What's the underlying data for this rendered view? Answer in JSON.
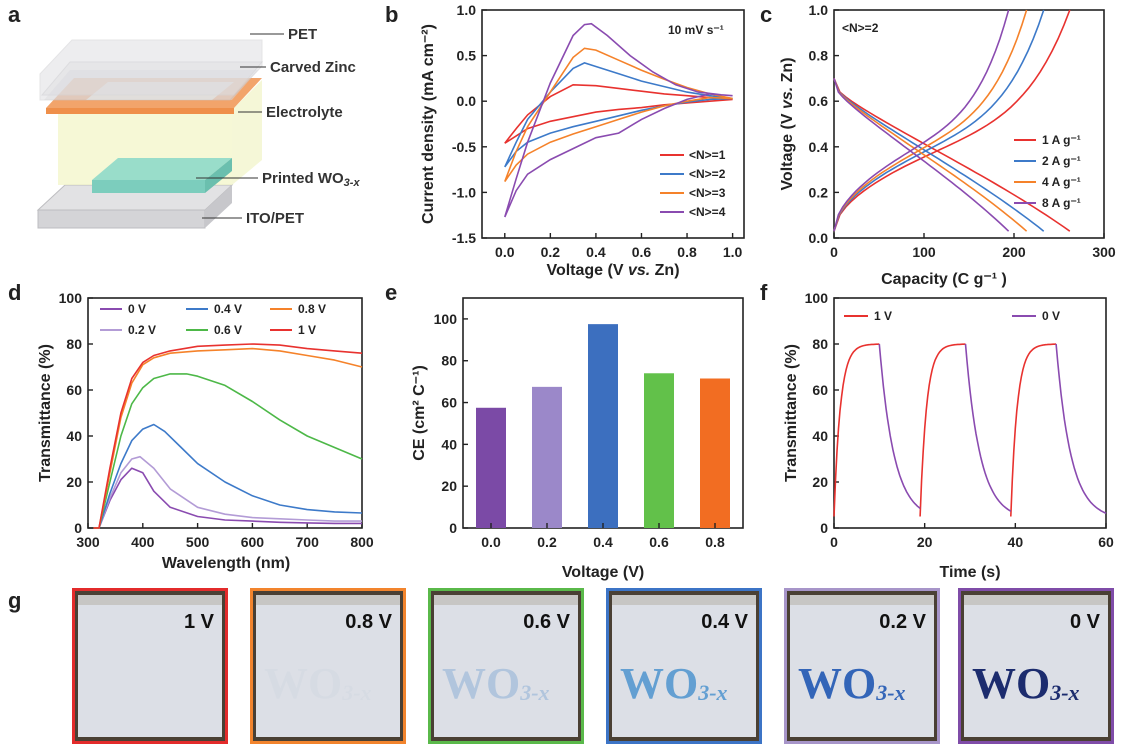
{
  "panel_labels": [
    "a",
    "b",
    "c",
    "d",
    "e",
    "f",
    "g"
  ],
  "schematic": {
    "labels": [
      "PET",
      "Carved Zinc",
      "Electrolyte",
      "Printed WO",
      "3-x",
      "ITO/PET"
    ]
  },
  "chart_data": [
    {
      "panel": "b",
      "type": "line",
      "xlabel_parts": [
        "Voltage (V ",
        "vs.",
        " Zn)"
      ],
      "ylabel": "Current density (mA cm⁻²)",
      "note": "10 mV s⁻¹",
      "xlim": [
        -0.1,
        1.05
      ],
      "ylim": [
        -1.5,
        1.0
      ],
      "xticks": [
        "0.0",
        "0.2",
        "0.4",
        "0.6",
        "0.8",
        "1.0"
      ],
      "yticks": [
        "-1.5",
        "-1.0",
        "-0.5",
        "0.0",
        "0.5",
        "1.0"
      ],
      "legend": [
        "<N>=1",
        "<N>=2",
        "<N>=3",
        "<N>=4"
      ],
      "colors": [
        "#e8322f",
        "#3d7ac9",
        "#f5822a",
        "#8a4bb0"
      ],
      "series": [
        {
          "name": "<N>=1",
          "x": [
            0.0,
            0.05,
            0.1,
            0.2,
            0.3,
            0.4,
            0.5,
            0.6,
            0.7,
            0.8,
            0.9,
            1.0,
            1.0,
            0.9,
            0.8,
            0.7,
            0.6,
            0.5,
            0.4,
            0.3,
            0.2,
            0.1,
            0.05,
            0.0
          ],
          "y": [
            -0.46,
            -0.3,
            -0.15,
            0.05,
            0.18,
            0.17,
            0.14,
            0.11,
            0.08,
            0.06,
            0.04,
            0.02,
            0.02,
            0.0,
            -0.02,
            -0.04,
            -0.07,
            -0.09,
            -0.12,
            -0.17,
            -0.22,
            -0.3,
            -0.38,
            -0.46
          ]
        },
        {
          "name": "<N>=2",
          "x": [
            0.0,
            0.05,
            0.1,
            0.2,
            0.3,
            0.35,
            0.4,
            0.5,
            0.6,
            0.7,
            0.8,
            0.9,
            1.0,
            1.0,
            0.9,
            0.8,
            0.7,
            0.6,
            0.5,
            0.4,
            0.3,
            0.2,
            0.1,
            0.05,
            0.0
          ],
          "y": [
            -0.72,
            -0.45,
            -0.2,
            0.1,
            0.36,
            0.42,
            0.38,
            0.3,
            0.22,
            0.16,
            0.1,
            0.06,
            0.03,
            0.03,
            0.02,
            -0.01,
            -0.05,
            -0.1,
            -0.16,
            -0.22,
            -0.28,
            -0.35,
            -0.45,
            -0.55,
            -0.72
          ]
        },
        {
          "name": "<N>=3",
          "x": [
            0.0,
            0.05,
            0.1,
            0.2,
            0.3,
            0.35,
            0.4,
            0.5,
            0.6,
            0.7,
            0.8,
            0.9,
            1.0,
            1.0,
            0.9,
            0.8,
            0.7,
            0.6,
            0.5,
            0.4,
            0.3,
            0.2,
            0.1,
            0.05,
            0.0
          ],
          "y": [
            -0.88,
            -0.55,
            -0.28,
            0.1,
            0.48,
            0.58,
            0.56,
            0.45,
            0.34,
            0.24,
            0.15,
            0.08,
            0.03,
            0.03,
            0.04,
            0.0,
            -0.05,
            -0.12,
            -0.2,
            -0.28,
            -0.36,
            -0.45,
            -0.58,
            -0.7,
            -0.88
          ]
        },
        {
          "name": "<N>=4",
          "x": [
            0.0,
            0.05,
            0.1,
            0.2,
            0.3,
            0.35,
            0.38,
            0.45,
            0.55,
            0.65,
            0.75,
            0.85,
            0.95,
            1.0,
            1.0,
            0.9,
            0.8,
            0.7,
            0.6,
            0.5,
            0.4,
            0.3,
            0.2,
            0.1,
            0.05,
            0.0
          ],
          "y": [
            -1.27,
            -0.85,
            -0.45,
            0.2,
            0.72,
            0.84,
            0.85,
            0.72,
            0.5,
            0.32,
            0.18,
            0.1,
            0.07,
            0.06,
            0.06,
            0.08,
            0.02,
            -0.08,
            -0.2,
            -0.35,
            -0.4,
            -0.52,
            -0.64,
            -0.8,
            -0.98,
            -1.27
          ]
        }
      ]
    },
    {
      "panel": "c",
      "type": "line",
      "xlabel": "Capacity (C g⁻¹ )",
      "ylabel_parts": [
        "Voltage (V ",
        "vs.",
        " Zn)"
      ],
      "note": "<N>=2",
      "xlim": [
        0,
        300
      ],
      "ylim": [
        0,
        1.0
      ],
      "xticks": [
        "0",
        "100",
        "200",
        "300"
      ],
      "yticks": [
        "0.0",
        "0.2",
        "0.4",
        "0.6",
        "0.8",
        "1.0"
      ],
      "legend": [
        "1 A g⁻¹",
        "2 A g⁻¹",
        "4 A g⁻¹",
        "8 A g⁻¹"
      ],
      "colors": [
        "#e8322f",
        "#3d7ac9",
        "#f5822a",
        "#8a4bb0"
      ],
      "capacities": [
        262,
        233,
        214,
        194
      ]
    },
    {
      "panel": "d",
      "type": "line",
      "xlabel": "Wavelength (nm)",
      "ylabel": "Transmittance (%)",
      "xlim": [
        300,
        800
      ],
      "ylim": [
        0,
        100
      ],
      "xticks": [
        "300",
        "400",
        "500",
        "600",
        "700",
        "800"
      ],
      "yticks": [
        "0",
        "20",
        "40",
        "60",
        "80",
        "100"
      ],
      "legend": [
        "0 V",
        "0.2 V",
        "0.4 V",
        "0.6 V",
        "0.8 V",
        "1 V"
      ],
      "colors": [
        "#8a4bb0",
        "#b39cd6",
        "#3d7ac9",
        "#4db848",
        "#f5822a",
        "#e8322f"
      ],
      "series": [
        {
          "name": "0 V",
          "x": [
            310,
            320,
            340,
            360,
            380,
            400,
            420,
            450,
            500,
            550,
            600,
            650,
            700,
            750,
            800
          ],
          "y": [
            0,
            0,
            12,
            21,
            26,
            24,
            16,
            9,
            5,
            3.5,
            3,
            2.5,
            2.2,
            2,
            2
          ]
        },
        {
          "name": "0.2 V",
          "x": [
            310,
            320,
            340,
            360,
            380,
            395,
            420,
            450,
            500,
            550,
            600,
            650,
            700,
            750,
            800
          ],
          "y": [
            0,
            0,
            13,
            24,
            30,
            31,
            26,
            17,
            9,
            6,
            4.5,
            4,
            3.5,
            3,
            3
          ]
        },
        {
          "name": "0.4 V",
          "x": [
            310,
            320,
            340,
            360,
            380,
            400,
            420,
            440,
            470,
            500,
            550,
            600,
            650,
            700,
            750,
            800
          ],
          "y": [
            0,
            0,
            15,
            28,
            38,
            43,
            45,
            42,
            35,
            28,
            20,
            14,
            10,
            8,
            7,
            6.5
          ]
        },
        {
          "name": "0.6 V",
          "x": [
            310,
            320,
            340,
            360,
            380,
            400,
            420,
            450,
            480,
            500,
            550,
            600,
            650,
            700,
            750,
            800
          ],
          "y": [
            0,
            0,
            20,
            40,
            54,
            61,
            65,
            67,
            67,
            66,
            62,
            55,
            47,
            40,
            35,
            30
          ]
        },
        {
          "name": "0.8 V",
          "x": [
            310,
            320,
            340,
            360,
            380,
            400,
            420,
            450,
            500,
            550,
            600,
            650,
            700,
            750,
            800
          ],
          "y": [
            0,
            0,
            24,
            48,
            63,
            71,
            74,
            76,
            77,
            77.5,
            78,
            77,
            75,
            73,
            70
          ]
        },
        {
          "name": "1 V",
          "x": [
            310,
            320,
            340,
            360,
            380,
            400,
            420,
            450,
            500,
            550,
            600,
            650,
            700,
            750,
            800
          ],
          "y": [
            0,
            0,
            26,
            50,
            65,
            72,
            75,
            77,
            79,
            79.5,
            80,
            79.5,
            78,
            77,
            76
          ]
        }
      ]
    },
    {
      "panel": "e",
      "type": "bar",
      "xlabel": "Voltage (V)",
      "ylabel": "CE (cm² C⁻¹)",
      "categories": [
        "0.0",
        "0.2",
        "0.4",
        "0.6",
        "0.8"
      ],
      "values": [
        57.5,
        67.5,
        97.5,
        74,
        71.5
      ],
      "colors": [
        "#7b4aa6",
        "#9b88c9",
        "#3c6fbf",
        "#62c14a",
        "#f26d22"
      ],
      "ylim": [
        0,
        110
      ],
      "yticks": [
        "0",
        "20",
        "40",
        "60",
        "80",
        "100"
      ]
    },
    {
      "panel": "f",
      "type": "line",
      "xlabel": "Time (s)",
      "ylabel": "Transmittance (%)",
      "xlim": [
        0,
        60
      ],
      "ylim": [
        0,
        100
      ],
      "xticks": [
        "0",
        "20",
        "40",
        "60"
      ],
      "yticks": [
        "0",
        "20",
        "40",
        "60",
        "80",
        "100"
      ],
      "legend": [
        "1 V",
        "0 V"
      ],
      "colors": [
        "#e8322f",
        "#8a4bb0"
      ],
      "coloring_segments": [
        [
          0,
          10
        ],
        [
          19,
          29
        ],
        [
          39,
          49
        ]
      ],
      "bleaching_segments": [
        [
          10,
          19
        ],
        [
          29,
          39
        ],
        [
          49,
          60
        ]
      ],
      "max_T": 80,
      "min_T": 5
    }
  ],
  "photos": [
    {
      "label": "1 V",
      "border": "#e32b2b",
      "text_color": "",
      "opacity": 0
    },
    {
      "label": "0.8 V",
      "border": "#f2842d",
      "text_color": "#b9c7d6",
      "opacity": 0.15
    },
    {
      "label": "0.6 V",
      "border": "#5ab94a",
      "text_color": "#8eb1d6",
      "opacity": 0.55
    },
    {
      "label": "0.4 V",
      "border": "#3c74c6",
      "text_color": "#4e95cf",
      "opacity": 0.85
    },
    {
      "label": "0.2 V",
      "border": "#a795c9",
      "text_color": "#2a5fb6",
      "opacity": 0.95
    },
    {
      "label": "0 V",
      "border": "#7f4ca8",
      "text_color": "#1c2c6e",
      "opacity": 1
    }
  ],
  "photo_text": {
    "main": "WO",
    "sub": "3-x"
  }
}
